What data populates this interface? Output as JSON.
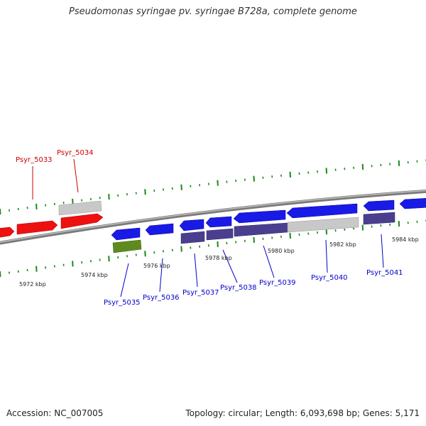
{
  "title": "Pseudomonas syringae pv. syringae B728a, complete genome",
  "footer": {
    "accession": "Accession: NC_007005",
    "stats": "Topology: circular; Length: 6,093,698 bp; Genes: 5,171"
  },
  "colors": {
    "forward_label": "#cc0000",
    "reverse_label": "#0000cc",
    "red_gene": "#ee1111",
    "blue_gene": "#1a1ae6",
    "purple_gene": "#4a3f8f",
    "grey_gene": "#c8c8c8",
    "green_gene": "#5f8a1e",
    "tick": "#1a8a1a",
    "backbone": "#777777"
  },
  "scale_labels": [
    "5972 kbp",
    "5974 kbp",
    "5976 kbp",
    "5978 kbp",
    "5980 kbp",
    "5982 kbp",
    "5984 kbp"
  ],
  "gene_labels": [
    {
      "text": "Psyr_5033",
      "strand": "forward"
    },
    {
      "text": "Psyr_5034",
      "strand": "forward"
    },
    {
      "text": "Psyr_5035",
      "strand": "reverse"
    },
    {
      "text": "Psyr_5036",
      "strand": "reverse"
    },
    {
      "text": "Psyr_5037",
      "strand": "reverse"
    },
    {
      "text": "Psyr_5038",
      "strand": "reverse"
    },
    {
      "text": "Psyr_5039",
      "strand": "reverse"
    },
    {
      "text": "Psyr_5040",
      "strand": "reverse"
    },
    {
      "text": "Psyr_5041",
      "strand": "reverse"
    }
  ]
}
